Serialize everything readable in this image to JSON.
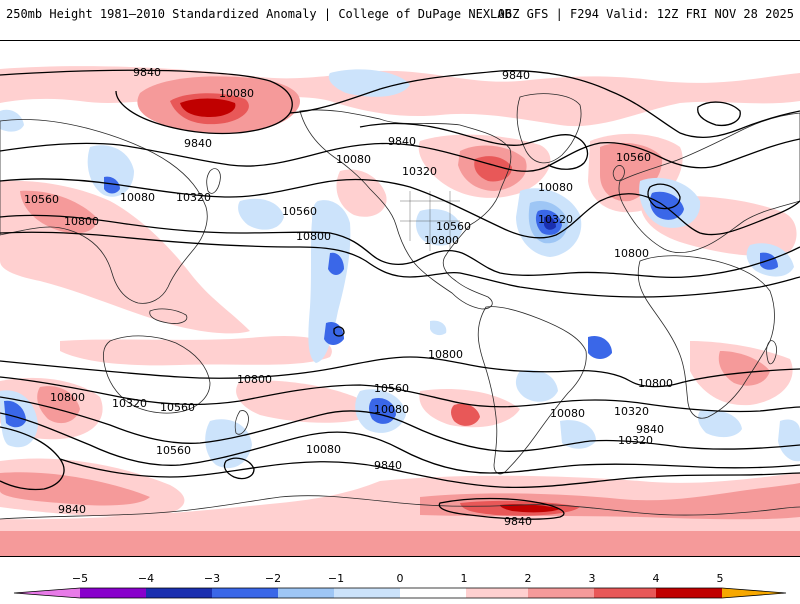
{
  "header": {
    "title_left": "250mb Height 1981–2010 Standardized Anomaly | College of DuPage NEXLAB",
    "title_right": "06Z GFS | F294 Valid: 12Z FRI NOV 28 2025"
  },
  "map": {
    "contour_labels": [
      {
        "id": "c1",
        "text": "9840"
      },
      {
        "id": "c2",
        "text": "10080"
      },
      {
        "id": "c3",
        "text": "9840"
      },
      {
        "id": "c4",
        "text": "9840"
      },
      {
        "id": "c5",
        "text": "9840"
      },
      {
        "id": "c6",
        "text": "10080"
      },
      {
        "id": "c7",
        "text": "10320"
      },
      {
        "id": "c8",
        "text": "10080"
      },
      {
        "id": "c9",
        "text": "10320"
      },
      {
        "id": "c10",
        "text": "10560"
      },
      {
        "id": "c11",
        "text": "10800"
      },
      {
        "id": "c12",
        "text": "10560"
      },
      {
        "id": "c13",
        "text": "10800"
      },
      {
        "id": "c14",
        "text": "10560"
      },
      {
        "id": "c15",
        "text": "10800"
      },
      {
        "id": "c16",
        "text": "10080"
      },
      {
        "id": "c17",
        "text": "10320"
      },
      {
        "id": "c18",
        "text": "10560"
      },
      {
        "id": "c19",
        "text": "10800"
      },
      {
        "id": "c20",
        "text": "10800"
      },
      {
        "id": "c21",
        "text": "10800"
      },
      {
        "id": "c22",
        "text": "10800"
      },
      {
        "id": "c23",
        "text": "10800"
      },
      {
        "id": "c24",
        "text": "10320"
      },
      {
        "id": "c25",
        "text": "10560"
      },
      {
        "id": "c26",
        "text": "10560"
      },
      {
        "id": "c27",
        "text": "10080"
      },
      {
        "id": "c28",
        "text": "10080"
      },
      {
        "id": "c29",
        "text": "10320"
      },
      {
        "id": "c30",
        "text": "9840"
      },
      {
        "id": "c31",
        "text": "10320"
      },
      {
        "id": "c32",
        "text": "10560"
      },
      {
        "id": "c33",
        "text": "10080"
      },
      {
        "id": "c34",
        "text": "9840"
      },
      {
        "id": "c35",
        "text": "9840"
      },
      {
        "id": "c36",
        "text": "9840"
      }
    ]
  },
  "colorbar": {
    "ticks": [
      "−5",
      "−4",
      "−3",
      "−2",
      "−1",
      "0",
      "1",
      "2",
      "3",
      "4",
      "5"
    ],
    "colors": {
      "n5": "#e87ae8",
      "n4": "#8800cc",
      "n3": "#1a2fb0",
      "n2": "#3a67e8",
      "n1": "#9ec6f5",
      "n0": "#cce3fb",
      "p0": "#ffffff",
      "p1": "#ffd0d0",
      "p2": "#f59a9a",
      "p3": "#e85858",
      "p4": "#c00000",
      "p5": "#f7a800"
    }
  }
}
